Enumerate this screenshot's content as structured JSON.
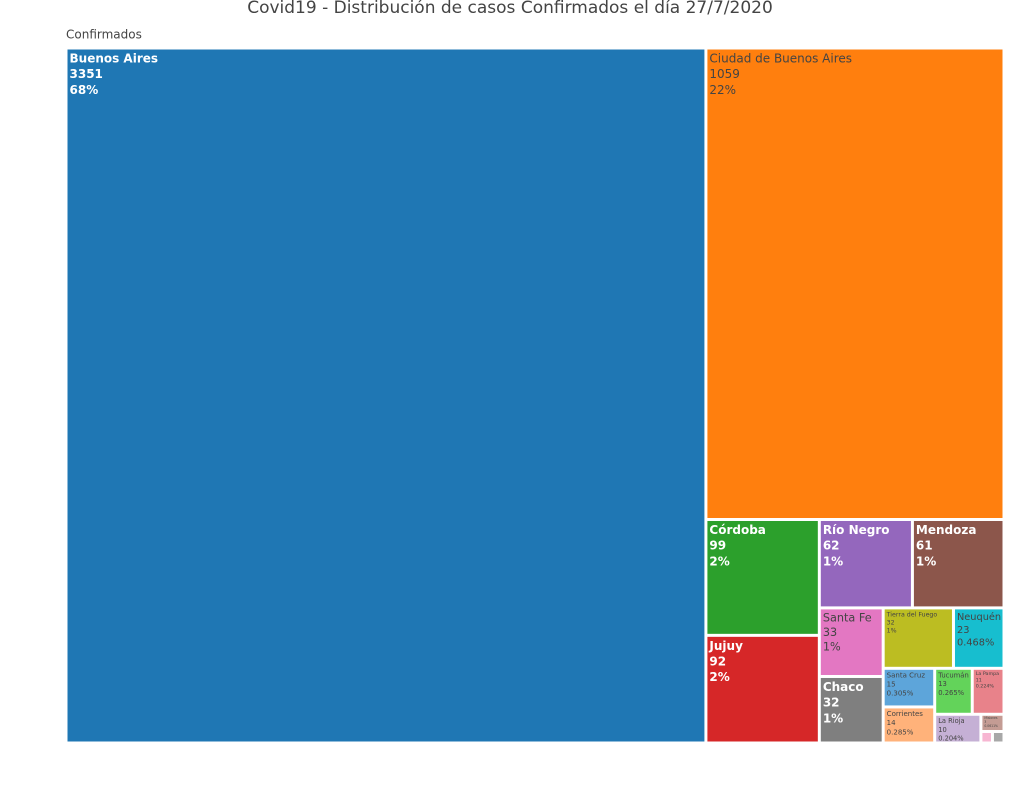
{
  "chart_data": {
    "type": "treemap",
    "title": "Covid19 - Distribución de casos Confirmados el día 27/7/2020",
    "root_label": "Confirmados",
    "categories": [
      "Buenos Aires",
      "Ciudad de Buenos Aires",
      "Córdoba",
      "Jujuy",
      "Río Negro",
      "Mendoza",
      "Santa Fe",
      "Chaco",
      "Tierra del Fuego",
      "Neuquén",
      "Santa Cruz",
      "Corrientes",
      "Tucumán",
      "La Pampa",
      "La Rioja",
      "Misiones",
      null,
      null
    ],
    "values": [
      3351,
      1059,
      99,
      92,
      62,
      61,
      33,
      32,
      32,
      23,
      15,
      14,
      13,
      11,
      10,
      3,
      1,
      1
    ],
    "percent_labels": [
      "68%",
      "22%",
      "2%",
      "2%",
      "1%",
      "1%",
      "1%",
      "1%",
      "1%",
      "0.468%",
      "0.305%",
      "0.285%",
      "0.265%",
      "0.224%",
      "0.204%",
      "0.0611%",
      null,
      null
    ],
    "colors": [
      "#1f77b4",
      "#ff7f0e",
      "#2ca02c",
      "#d62728",
      "#9467bd",
      "#8c564b",
      "#e377c2",
      "#7f7f7f",
      "#bcbd22",
      "#17becf",
      "#5da5da",
      "#ffb27a",
      "#63d35a",
      "#e8828a",
      "#c5b0d5",
      "#c49c94",
      "#f7b6d2",
      "#a8a8a8"
    ]
  }
}
